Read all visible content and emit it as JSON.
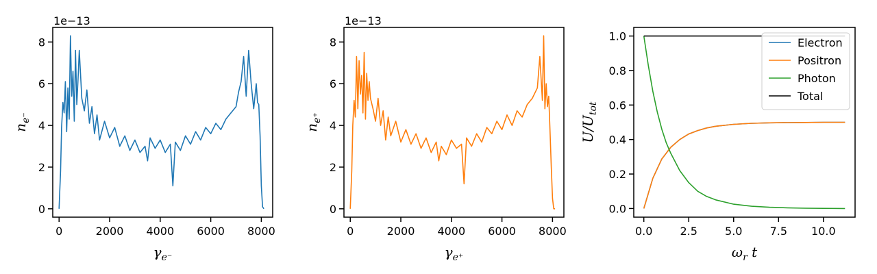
{
  "chart_data": [
    {
      "type": "line",
      "title": "",
      "xlabel": "γ_{e⁻}",
      "ylabel": "n_{e⁻}",
      "offset_text": "1e−13",
      "xlim": [
        -250,
        8450
      ],
      "ylim": [
        -0.4,
        8.7
      ],
      "xticks": [
        0,
        2000,
        4000,
        6000,
        8000
      ],
      "xtick_labels": [
        "0",
        "2000",
        "4000",
        "6000",
        "8000"
      ],
      "yticks": [
        0,
        2,
        4,
        6,
        8
      ],
      "ytick_labels": [
        "0",
        "2",
        "4",
        "6",
        "8"
      ],
      "grid": false,
      "series": [
        {
          "color": "#1f77b4",
          "x": [
            0,
            60,
            100,
            150,
            200,
            250,
            300,
            350,
            400,
            450,
            500,
            550,
            600,
            650,
            700,
            750,
            800,
            900,
            1000,
            1100,
            1200,
            1300,
            1400,
            1500,
            1600,
            1800,
            2000,
            2200,
            2400,
            2600,
            2800,
            3000,
            3200,
            3400,
            3500,
            3600,
            3800,
            4000,
            4200,
            4400,
            4500,
            4600,
            4800,
            5000,
            5200,
            5400,
            5600,
            5800,
            6000,
            6200,
            6400,
            6600,
            6800,
            7000,
            7100,
            7200,
            7300,
            7400,
            7500,
            7600,
            7700,
            7800,
            7850,
            7900,
            7950,
            8000,
            8050,
            8100
          ],
          "y": [
            0.0,
            1.8,
            3.9,
            5.1,
            4.6,
            6.1,
            3.7,
            5.8,
            4.3,
            8.3,
            5.4,
            6.6,
            4.2,
            7.6,
            5.0,
            6.2,
            7.6,
            5.3,
            4.7,
            5.7,
            4.1,
            4.9,
            3.6,
            4.5,
            3.3,
            4.2,
            3.4,
            3.9,
            3.0,
            3.5,
            2.8,
            3.3,
            2.7,
            3.0,
            2.3,
            3.4,
            2.9,
            3.3,
            2.7,
            3.1,
            1.1,
            3.2,
            2.8,
            3.5,
            3.1,
            3.7,
            3.3,
            3.9,
            3.6,
            4.1,
            3.8,
            4.3,
            4.6,
            4.9,
            5.6,
            6.1,
            7.3,
            5.4,
            7.6,
            6.0,
            4.8,
            6.0,
            5.1,
            5.0,
            3.5,
            1.1,
            0.1,
            0.0
          ]
        }
      ]
    },
    {
      "type": "line",
      "title": "",
      "xlabel": "γ_{e⁺}",
      "ylabel": "n_{e⁺}",
      "offset_text": "1e−13",
      "xlim": [
        -250,
        8450
      ],
      "ylim": [
        -0.4,
        8.7
      ],
      "xticks": [
        0,
        2000,
        4000,
        6000,
        8000
      ],
      "xtick_labels": [
        "0",
        "2000",
        "4000",
        "6000",
        "8000"
      ],
      "yticks": [
        0,
        2,
        4,
        6,
        8
      ],
      "ytick_labels": [
        "0",
        "2",
        "4",
        "6",
        "8"
      ],
      "grid": false,
      "series": [
        {
          "color": "#ff7f0e",
          "x": [
            0,
            60,
            100,
            150,
            200,
            250,
            300,
            350,
            400,
            450,
            500,
            550,
            600,
            650,
            700,
            750,
            800,
            900,
            1000,
            1100,
            1200,
            1300,
            1400,
            1500,
            1600,
            1800,
            2000,
            2200,
            2400,
            2600,
            2800,
            3000,
            3200,
            3400,
            3500,
            3600,
            3800,
            4000,
            4200,
            4400,
            4500,
            4600,
            4800,
            5000,
            5200,
            5400,
            5600,
            5800,
            6000,
            6200,
            6400,
            6600,
            6800,
            7000,
            7200,
            7400,
            7500,
            7600,
            7650,
            7700,
            7750,
            7800,
            7850,
            7900,
            7950,
            8000,
            8050,
            8100
          ],
          "y": [
            0.0,
            1.8,
            4.0,
            5.2,
            4.4,
            7.3,
            4.8,
            7.1,
            5.5,
            6.4,
            4.6,
            7.5,
            4.3,
            6.5,
            5.2,
            6.1,
            5.3,
            4.8,
            4.2,
            5.3,
            4.0,
            4.7,
            3.3,
            4.4,
            3.5,
            4.2,
            3.2,
            3.8,
            3.1,
            3.6,
            2.9,
            3.4,
            2.7,
            3.2,
            2.3,
            3.0,
            2.6,
            3.3,
            2.9,
            3.1,
            1.2,
            3.4,
            3.0,
            3.6,
            3.2,
            3.9,
            3.6,
            4.2,
            3.8,
            4.5,
            4.0,
            4.7,
            4.4,
            5.0,
            5.3,
            5.8,
            7.3,
            5.2,
            8.3,
            4.8,
            6.0,
            4.9,
            5.4,
            3.8,
            2.0,
            0.5,
            0.0,
            0.0
          ]
        }
      ]
    },
    {
      "type": "line",
      "title": "",
      "xlabel": "ω_r t",
      "ylabel": "U/U_{tot}",
      "xlim": [
        -0.56,
        11.76
      ],
      "ylim": [
        -0.05,
        1.05
      ],
      "xticks": [
        0,
        2.5,
        5,
        7.5,
        10
      ],
      "xtick_labels": [
        "0.0",
        "2.5",
        "5.0",
        "7.5",
        "10.0"
      ],
      "yticks": [
        0,
        0.2,
        0.4,
        0.6,
        0.8,
        1.0
      ],
      "ytick_labels": [
        "0.0",
        "0.2",
        "0.4",
        "0.6",
        "0.8",
        "1.0"
      ],
      "grid": false,
      "legend_position": "top-right",
      "series": [
        {
          "name": "Electron",
          "color": "#1f77b4",
          "x": [
            0,
            0.5,
            1,
            1.5,
            2,
            2.5,
            3,
            3.5,
            4,
            5,
            6,
            7,
            8,
            9,
            10,
            11.2
          ],
          "y": [
            0.0,
            0.175,
            0.287,
            0.355,
            0.4,
            0.432,
            0.452,
            0.467,
            0.477,
            0.488,
            0.494,
            0.497,
            0.498,
            0.499,
            0.5,
            0.5
          ]
        },
        {
          "name": "Positron",
          "color": "#ff7f0e",
          "x": [
            0,
            0.5,
            1,
            1.5,
            2,
            2.5,
            3,
            3.5,
            4,
            5,
            6,
            7,
            8,
            9,
            10,
            11.2
          ],
          "y": [
            0.0,
            0.175,
            0.287,
            0.355,
            0.4,
            0.432,
            0.452,
            0.467,
            0.477,
            0.488,
            0.494,
            0.497,
            0.498,
            0.499,
            0.5,
            0.5
          ]
        },
        {
          "name": "Photon",
          "color": "#2ca02c",
          "x": [
            0,
            0.25,
            0.5,
            0.75,
            1,
            1.25,
            1.5,
            2,
            2.5,
            3,
            3.5,
            4,
            5,
            6,
            7,
            8,
            9,
            10,
            11.2
          ],
          "y": [
            1.0,
            0.83,
            0.68,
            0.56,
            0.46,
            0.38,
            0.32,
            0.22,
            0.15,
            0.1,
            0.07,
            0.05,
            0.025,
            0.013,
            0.007,
            0.004,
            0.002,
            0.001,
            0.0
          ]
        },
        {
          "name": "Total",
          "color": "#000000",
          "x": [
            0,
            11.2
          ],
          "y": [
            1.0,
            1.0
          ]
        }
      ]
    }
  ]
}
